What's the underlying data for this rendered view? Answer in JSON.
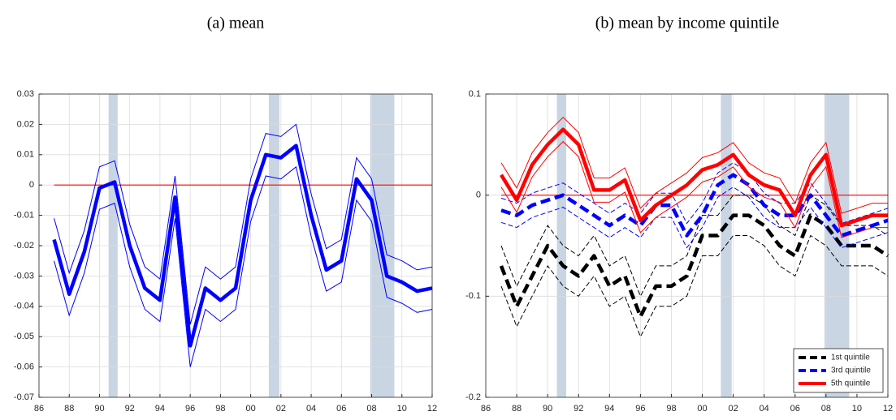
{
  "chart_data": [
    {
      "type": "line",
      "title": "(a) mean",
      "x": [
        1987,
        1988,
        1989,
        1990,
        1991,
        1992,
        1993,
        1994,
        1995,
        1996,
        1997,
        1998,
        1999,
        2000,
        2001,
        2002,
        2003,
        2004,
        2005,
        2006,
        2007,
        2008,
        2009,
        2010,
        2011,
        2012
      ],
      "series": [
        {
          "color": "#0000ff",
          "values": [
            -0.018,
            -0.036,
            -0.022,
            -0.001,
            0.001,
            -0.02,
            -0.034,
            -0.038,
            -0.004,
            -0.053,
            -0.034,
            -0.038,
            -0.034,
            -0.005,
            0.01,
            0.009,
            0.013,
            -0.01,
            -0.028,
            -0.025,
            0.002,
            -0.005,
            -0.03,
            -0.032,
            -0.035,
            -0.034
          ],
          "upper": [
            -0.011,
            -0.029,
            -0.015,
            0.006,
            0.008,
            -0.013,
            -0.027,
            -0.031,
            0.003,
            -0.046,
            -0.027,
            -0.031,
            -0.027,
            0.002,
            0.017,
            0.016,
            0.02,
            -0.003,
            -0.021,
            -0.018,
            0.009,
            0.002,
            -0.023,
            -0.025,
            -0.028,
            -0.027
          ],
          "lower": [
            -0.025,
            -0.043,
            -0.029,
            -0.008,
            -0.006,
            -0.027,
            -0.041,
            -0.045,
            -0.011,
            -0.06,
            -0.041,
            -0.045,
            -0.041,
            -0.012,
            0.003,
            0.002,
            0.006,
            -0.017,
            -0.035,
            -0.032,
            -0.005,
            -0.012,
            -0.037,
            -0.039,
            -0.042,
            -0.041
          ]
        }
      ],
      "reference_line": 0,
      "reference_color": "#ff0000",
      "shaded_regions": [
        [
          1990.6,
          1991.2
        ],
        [
          2001.2,
          2001.9
        ],
        [
          2007.9,
          2009.5
        ]
      ],
      "shade_color": "#c9d5e3",
      "xlim": [
        1986,
        2012
      ],
      "xticks": [
        {
          "value": 1986,
          "label": "86"
        },
        {
          "value": 1988,
          "label": "88"
        },
        {
          "value": 1990,
          "label": "90"
        },
        {
          "value": 1992,
          "label": "92"
        },
        {
          "value": 1994,
          "label": "94"
        },
        {
          "value": 1996,
          "label": "96"
        },
        {
          "value": 1998,
          "label": "98"
        },
        {
          "value": 2000,
          "label": "00"
        },
        {
          "value": 2002,
          "label": "02"
        },
        {
          "value": 2004,
          "label": "04"
        },
        {
          "value": 2006,
          "label": "06"
        },
        {
          "value": 2008,
          "label": "08"
        },
        {
          "value": 2010,
          "label": "10"
        },
        {
          "value": 2012,
          "label": "12"
        }
      ],
      "ylim": [
        -0.07,
        0.03
      ],
      "yticks": [
        -0.07,
        -0.06,
        -0.05,
        -0.04,
        -0.03,
        -0.02,
        -0.01,
        0,
        0.01,
        0.02,
        0.03
      ],
      "grid": true
    },
    {
      "type": "line",
      "title": "(b) mean by income quintile",
      "x": [
        1987,
        1988,
        1989,
        1990,
        1991,
        1992,
        1993,
        1994,
        1995,
        1996,
        1997,
        1998,
        1999,
        2000,
        2001,
        2002,
        2003,
        2004,
        2005,
        2006,
        2007,
        2008,
        2009,
        2010,
        2011,
        2012
      ],
      "series": [
        {
          "name": "1st quintile",
          "color": "#000000",
          "dash": true,
          "values": [
            -0.07,
            -0.11,
            -0.08,
            -0.05,
            -0.07,
            -0.08,
            -0.06,
            -0.09,
            -0.08,
            -0.12,
            -0.09,
            -0.09,
            -0.08,
            -0.04,
            -0.04,
            -0.02,
            -0.02,
            -0.03,
            -0.05,
            -0.06,
            -0.02,
            -0.03,
            -0.05,
            -0.05,
            -0.05,
            -0.06
          ],
          "upper": [
            -0.05,
            -0.09,
            -0.06,
            -0.03,
            -0.05,
            -0.06,
            -0.04,
            -0.07,
            -0.06,
            -0.1,
            -0.07,
            -0.07,
            -0.06,
            -0.02,
            -0.02,
            0.0,
            0.0,
            -0.01,
            -0.03,
            -0.04,
            0.0,
            -0.01,
            -0.03,
            -0.03,
            -0.03,
            -0.04
          ],
          "lower": [
            -0.09,
            -0.13,
            -0.1,
            -0.07,
            -0.09,
            -0.1,
            -0.08,
            -0.11,
            -0.1,
            -0.14,
            -0.11,
            -0.11,
            -0.1,
            -0.06,
            -0.06,
            -0.04,
            -0.04,
            -0.05,
            -0.07,
            -0.08,
            -0.04,
            -0.05,
            -0.07,
            -0.07,
            -0.07,
            -0.08
          ]
        },
        {
          "name": "3rd quintile",
          "color": "#0000ff",
          "dash": true,
          "values": [
            -0.015,
            -0.02,
            -0.01,
            -0.005,
            0.0,
            -0.01,
            -0.02,
            -0.03,
            -0.02,
            -0.03,
            -0.01,
            -0.01,
            -0.04,
            -0.02,
            0.01,
            0.02,
            0.01,
            -0.01,
            -0.02,
            -0.02,
            0.0,
            -0.02,
            -0.04,
            -0.035,
            -0.03,
            -0.025
          ],
          "upper": [
            -0.003,
            -0.008,
            0.002,
            0.007,
            0.012,
            0.002,
            -0.008,
            -0.018,
            -0.008,
            -0.018,
            0.002,
            0.002,
            -0.028,
            -0.008,
            0.022,
            0.032,
            0.022,
            0.002,
            -0.008,
            -0.008,
            0.012,
            -0.008,
            -0.028,
            -0.023,
            -0.018,
            -0.013
          ],
          "lower": [
            -0.027,
            -0.032,
            -0.022,
            -0.017,
            -0.012,
            -0.022,
            -0.032,
            -0.042,
            -0.032,
            -0.042,
            -0.022,
            -0.022,
            -0.052,
            -0.032,
            -0.002,
            0.008,
            -0.002,
            -0.022,
            -0.032,
            -0.032,
            -0.012,
            -0.032,
            -0.052,
            -0.047,
            -0.042,
            -0.037
          ]
        },
        {
          "name": "5th quintile",
          "color": "#ff0000",
          "dash": false,
          "values": [
            0.02,
            -0.005,
            0.03,
            0.05,
            0.065,
            0.05,
            0.005,
            0.005,
            0.015,
            -0.025,
            -0.01,
            0.0,
            0.01,
            0.025,
            0.03,
            0.04,
            0.02,
            0.01,
            0.005,
            -0.02,
            0.02,
            0.04,
            -0.03,
            -0.025,
            -0.02,
            -0.02
          ],
          "upper": [
            0.032,
            0.007,
            0.042,
            0.062,
            0.077,
            0.062,
            0.017,
            0.017,
            0.027,
            -0.013,
            0.002,
            0.012,
            0.022,
            0.037,
            0.042,
            0.052,
            0.032,
            0.022,
            0.017,
            -0.008,
            0.032,
            0.052,
            -0.018,
            -0.013,
            -0.008,
            -0.008
          ],
          "lower": [
            0.008,
            -0.017,
            0.018,
            0.038,
            0.053,
            0.038,
            -0.007,
            -0.007,
            0.003,
            -0.037,
            -0.022,
            -0.012,
            -0.002,
            0.013,
            0.018,
            0.028,
            0.008,
            -0.002,
            -0.007,
            -0.032,
            0.008,
            0.028,
            -0.042,
            -0.037,
            -0.032,
            -0.032
          ]
        }
      ],
      "reference_line": 0,
      "reference_color": "#ff0000",
      "shaded_regions": [
        [
          1990.6,
          1991.2
        ],
        [
          2001.2,
          2001.9
        ],
        [
          2007.9,
          2009.5
        ]
      ],
      "shade_color": "#c9d5e3",
      "legend": "lower right",
      "xlim": [
        1986,
        2012
      ],
      "xticks": [
        {
          "value": 1986,
          "label": "86"
        },
        {
          "value": 1988,
          "label": "88"
        },
        {
          "value": 1990,
          "label": "90"
        },
        {
          "value": 1992,
          "label": "92"
        },
        {
          "value": 1994,
          "label": "94"
        },
        {
          "value": 1996,
          "label": "96"
        },
        {
          "value": 1998,
          "label": "98"
        },
        {
          "value": 2000,
          "label": "00"
        },
        {
          "value": 2002,
          "label": "02"
        },
        {
          "value": 2004,
          "label": "04"
        },
        {
          "value": 2006,
          "label": "06"
        },
        {
          "value": 2008,
          "label": "08"
        },
        {
          "value": 2010,
          "label": "10"
        },
        {
          "value": 2012,
          "label": "12"
        }
      ],
      "ylim": [
        -0.2,
        0.1
      ],
      "yticks": [
        -0.2,
        -0.1,
        0,
        0.1
      ],
      "grid": true
    }
  ]
}
